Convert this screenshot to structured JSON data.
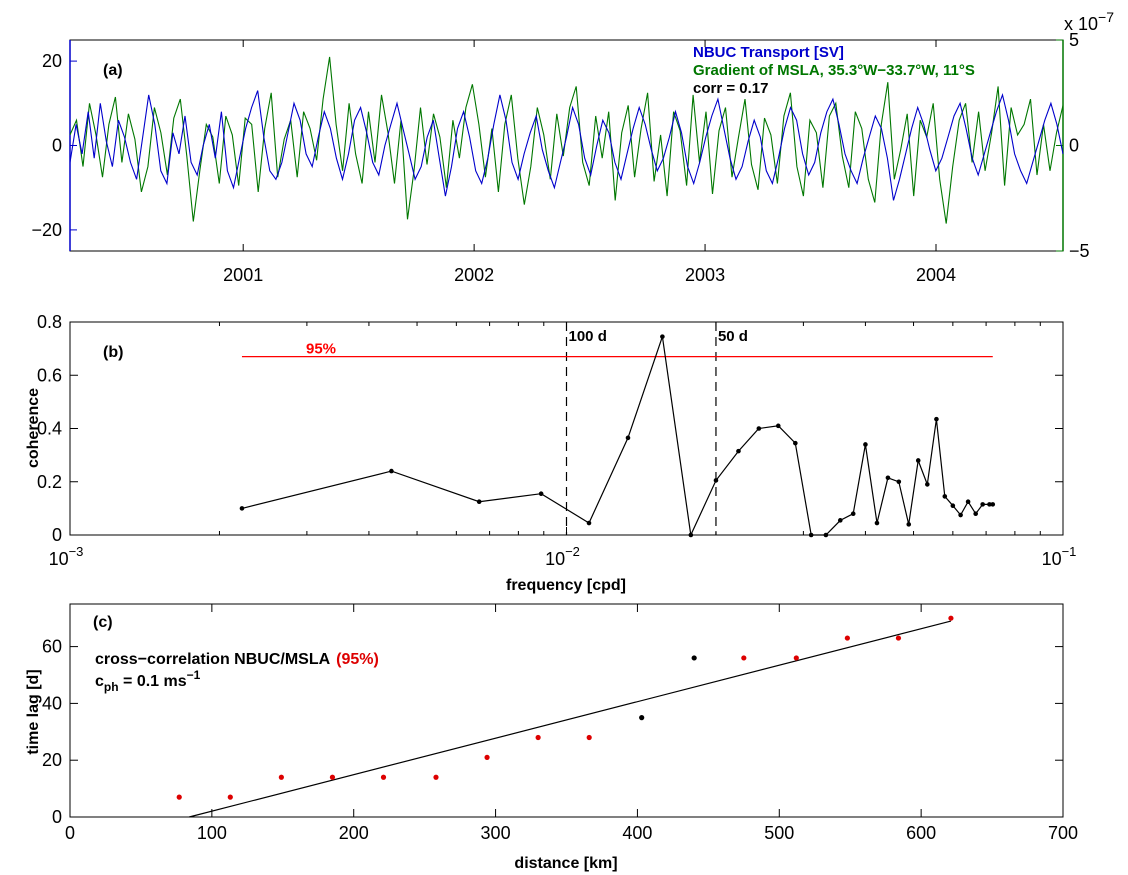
{
  "chart_data": [
    {
      "panel": "(a)",
      "type": "line",
      "x_tick_labels": [
        "2001",
        "2002",
        "2003",
        "2004"
      ],
      "y_left_ticks": [
        "20",
        "0",
        "−20"
      ],
      "y_right_ticks": [
        "5",
        "0",
        "−5"
      ],
      "y_right_exponent": "x 10",
      "y_right_exponent_power": "−7",
      "legend": {
        "transport": "NBUC Transport [SV]",
        "gradient": "Gradient of MSLA, 35.3°W−33.7°W, 11°S",
        "corr": "corr = 0.17"
      },
      "colors": {
        "transport": "#0000cc",
        "gradient": "#007700",
        "axis_left": "#0000cc",
        "axis_right": "#007700"
      },
      "xlim": [
        2000.25,
        2004.55
      ],
      "ylim_left": [
        -25,
        25
      ],
      "ylim_right": [
        -5,
        5
      ],
      "series": [
        {
          "axis": "left",
          "color": "#0000cc",
          "values": [
            -4,
            5,
            -2,
            8,
            -3,
            10,
            1,
            -5,
            6,
            2,
            -4,
            -8,
            2,
            12,
            5,
            -6,
            -9,
            3,
            -2,
            7,
            -4,
            -7,
            0,
            5,
            -3,
            8,
            -6,
            -10,
            -3,
            4,
            9,
            13,
            2,
            -6,
            -8,
            -4,
            3,
            10,
            6,
            -2,
            -5,
            2,
            8,
            4,
            -3,
            -8,
            -2,
            6,
            9,
            3,
            -4,
            -7,
            0,
            5,
            10,
            4,
            -2,
            -8,
            -5,
            2,
            6,
            -3,
            -12,
            -5,
            4,
            8,
            2,
            -6,
            -9,
            -3,
            5,
            12,
            6,
            -4,
            -8,
            -2,
            3,
            7,
            -1,
            -6,
            -10,
            -4,
            2,
            9,
            5,
            -3,
            -7,
            0,
            6,
            3,
            -4,
            -8,
            -2,
            4,
            9,
            5,
            -1,
            -6,
            -3,
            2,
            8,
            3,
            -5,
            -9,
            -4,
            2,
            7,
            11,
            4,
            -3,
            -8,
            -5,
            1,
            6,
            2,
            -6,
            -9,
            -3,
            4,
            9,
            6,
            -2,
            -7,
            -4,
            3,
            8,
            11,
            5,
            -2,
            -6,
            -9,
            -3,
            2,
            7,
            4,
            -3,
            -13,
            -8,
            -2,
            4,
            9,
            5,
            -1,
            -6,
            -3,
            2,
            7,
            10,
            4,
            -3,
            -7,
            -2,
            3,
            8,
            12,
            6,
            -2,
            -6,
            -9,
            -4,
            1,
            6,
            10,
            5,
            -2
          ]
        },
        {
          "axis": "right",
          "color": "#007700",
          "values": [
            0.5,
            1.2,
            -1,
            2,
            0.5,
            -1.5,
            1,
            2.3,
            -0.8,
            1.5,
            0.3,
            -2.2,
            -1,
            1.8,
            0.6,
            -1.4,
            1.3,
            2.2,
            -0.5,
            -3.6,
            -1.2,
            1,
            0.4,
            -1.8,
            1.4,
            0.5,
            -1.9,
            1.3,
            1,
            -2.2,
            0.8,
            2.5,
            -1.5,
            0.3,
            1.2,
            -1.5,
            1.6,
            0.8,
            -0.7,
            2.2,
            4.2,
            1,
            -1.2,
            2,
            -0.4,
            -1.8,
            1.6,
            -0.8,
            2.4,
            0.6,
            -1.8,
            1.2,
            -3.5,
            -1.2,
            1.8,
            -0.9,
            1.5,
            0.4,
            -2,
            1.2,
            -0.6,
            1.8,
            2.9,
            1,
            -1.5,
            0.8,
            -2.2,
            1,
            2.4,
            -0.6,
            -2.8,
            -1,
            1.8,
            0.5,
            -1.6,
            1.5,
            -0.5,
            1.8,
            2.8,
            -0.8,
            -1.9,
            1.4,
            -0.6,
            1.6,
            -2.6,
            0.6,
            1.9,
            -1.5,
            0.8,
            2.5,
            -1.7,
            0.5,
            -2.4,
            1.6,
            0.7,
            -1.9,
            2.4,
            -0.8,
            1.6,
            -2.3,
            0.7,
            1.8,
            -1.5,
            0.4,
            2.2,
            -0.9,
            -2.1,
            1.3,
            0.5,
            -1.8,
            1.4,
            2.5,
            -1,
            -2.4,
            1.2,
            0.6,
            -2,
            1.4,
            2,
            -0.5,
            -2,
            1.6,
            0.8,
            -1.6,
            -2.7,
            1,
            3,
            -1.6,
            -0.2,
            1.5,
            -2.4,
            1.2,
            0.4,
            2,
            -1.6,
            -3.7,
            -1,
            1.2,
            2,
            -0.8,
            1.6,
            -1.2,
            0.6,
            2.8,
            -1.9,
            1.8,
            0.5,
            1,
            2.2,
            -1.4,
            1,
            -1.2,
            0.6,
            1.9
          ]
        }
      ]
    },
    {
      "panel": "(b)",
      "type": "line",
      "xscale": "log",
      "xlabel": "frequency [cpd]",
      "ylabel": "coherence",
      "xlim": [
        0.001,
        0.1
      ],
      "ylim": [
        0,
        0.8
      ],
      "x_tick_values": [
        0.001,
        0.01,
        0.1
      ],
      "x_tick_base": "10",
      "x_tick_powers": [
        "−3",
        "−2",
        "−1"
      ],
      "y_ticks": [
        "0",
        "0.2",
        "0.4",
        "0.6",
        "0.8"
      ],
      "significance": {
        "label": "95%",
        "value": 0.67,
        "x_range": [
          0.00222,
          0.0722
        ],
        "color": "#ff0000"
      },
      "markers": [
        {
          "label": "100 d",
          "x": 0.01
        },
        {
          "label": "50 d",
          "x": 0.02
        }
      ],
      "x": [
        0.00222,
        0.00444,
        0.00667,
        0.00889,
        0.0111,
        0.0133,
        0.0156,
        0.0178,
        0.02,
        0.0222,
        0.0244,
        0.0267,
        0.0289,
        0.0311,
        0.0333,
        0.0356,
        0.0378,
        0.04,
        0.0422,
        0.0444,
        0.0467,
        0.0489,
        0.0511,
        0.0533,
        0.0556,
        0.0578,
        0.06,
        0.0622,
        0.0644,
        0.0667,
        0.0689,
        0.0711,
        0.0722
      ],
      "y": [
        0.1,
        0.24,
        0.125,
        0.155,
        0.045,
        0.365,
        0.745,
        0.0,
        0.205,
        0.315,
        0.4,
        0.41,
        0.345,
        0.0,
        0.0,
        0.055,
        0.08,
        0.34,
        0.045,
        0.215,
        0.2,
        0.04,
        0.28,
        0.19,
        0.435,
        0.145,
        0.11,
        0.075,
        0.125,
        0.08,
        0.115,
        0.115,
        0.115
      ]
    },
    {
      "panel": "(c)",
      "type": "scatter",
      "xlabel": "distance [km]",
      "ylabel": "time lag [d]",
      "title": "cross−correlation NBUC/MSLA",
      "title_note": "(95%)",
      "phase_speed_text": "c",
      "phase_speed_sub": "ph",
      "phase_speed_value": " = 0.1 ms",
      "phase_speed_sup": "−1",
      "xlim": [
        0,
        700
      ],
      "ylim": [
        0,
        75
      ],
      "x_ticks": [
        "0",
        "100",
        "200",
        "300",
        "400",
        "500",
        "600",
        "700"
      ],
      "y_ticks": [
        "0",
        "20",
        "40",
        "60"
      ],
      "points": [
        {
          "x": 77,
          "y": 7,
          "significant": true
        },
        {
          "x": 113,
          "y": 7,
          "significant": true
        },
        {
          "x": 149,
          "y": 14,
          "significant": true
        },
        {
          "x": 185,
          "y": 14,
          "significant": true
        },
        {
          "x": 221,
          "y": 14,
          "significant": true
        },
        {
          "x": 258,
          "y": 14,
          "significant": true
        },
        {
          "x": 294,
          "y": 21,
          "significant": true
        },
        {
          "x": 330,
          "y": 28,
          "significant": true
        },
        {
          "x": 366,
          "y": 28,
          "significant": true
        },
        {
          "x": 403,
          "y": 35,
          "significant": false
        },
        {
          "x": 440,
          "y": 56,
          "significant": false
        },
        {
          "x": 475,
          "y": 56,
          "significant": true
        },
        {
          "x": 512,
          "y": 56,
          "significant": true
        },
        {
          "x": 548,
          "y": 63,
          "significant": true
        },
        {
          "x": 584,
          "y": 63,
          "significant": true
        },
        {
          "x": 621,
          "y": 70,
          "significant": true
        }
      ],
      "fit_line": {
        "x": [
          84,
          621
        ],
        "y": [
          0,
          69
        ]
      },
      "colors": {
        "significant": "#dd0000",
        "other": "#000000"
      }
    }
  ]
}
